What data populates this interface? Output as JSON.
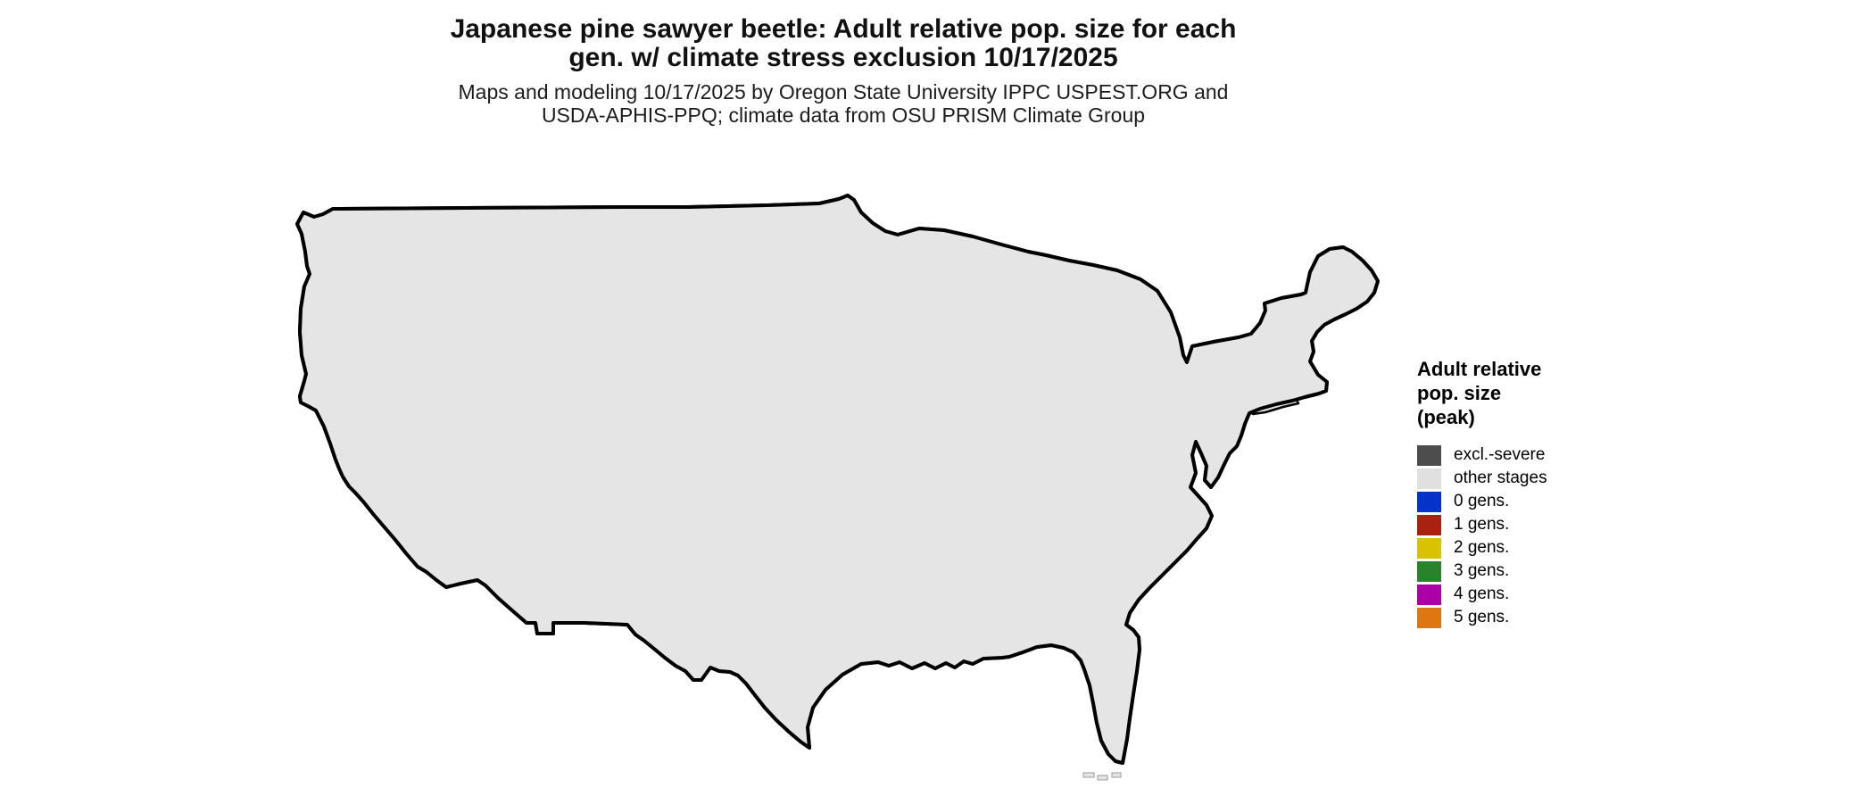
{
  "title": {
    "line1": "Japanese pine sawyer beetle: Adult relative pop. size for each",
    "line2": "gen. w/ climate stress exclusion 10/17/2025"
  },
  "subtitle": {
    "line1": "Maps and modeling 10/17/2025 by Oregon State University IPPC USPEST.ORG and",
    "line2": "USDA-APHIS-PPQ; climate data from OSU PRISM Climate Group"
  },
  "legend": {
    "title_lines": [
      "Adult relative",
      "pop. size",
      "(peak)"
    ],
    "items": [
      {
        "label": "excl.-severe",
        "color": "#4d4d4d"
      },
      {
        "label": "other stages",
        "color": "#e0e0e0"
      },
      {
        "label": "0 gens.",
        "color": "#0433cc"
      },
      {
        "label": "1 gens.",
        "color": "#a8220f"
      },
      {
        "label": "2 gens.",
        "color": "#d9c201"
      },
      {
        "label": "3 gens.",
        "color": "#27842b"
      },
      {
        "label": "4 gens.",
        "color": "#ab00a5"
      },
      {
        "label": "5 gens.",
        "color": "#dc7714"
      }
    ]
  },
  "map": {
    "palette": {
      "land": "#e5e5e5",
      "border": "#000000",
      "lake": "#ffffff",
      "salt_lake": "#f5f5f5",
      "excl_severe": "#595959",
      "gens0_blue": "#1243d2",
      "gens0_cyan": "#2fa8e8",
      "gens1_red": "#e0401a",
      "gens1_dark": "#9e2215",
      "gens2_yellow": "#f2ee07",
      "gens2_olive": "#b2a216",
      "gens3_light": "#8ad694",
      "gens3_green": "#2f9e41",
      "gens3_dark": "#14771f"
    }
  }
}
